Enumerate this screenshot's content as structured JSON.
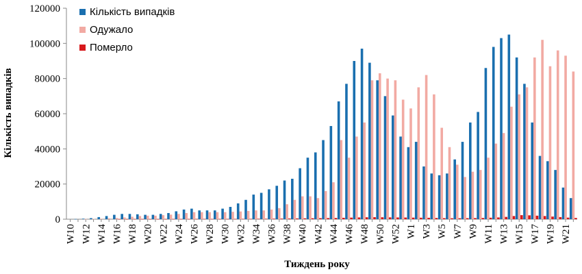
{
  "chart_data": {
    "type": "bar",
    "title": "",
    "xlabel": "Тиждень року",
    "ylabel": "Кількість випадків",
    "ylim": [
      0,
      120000
    ],
    "yticks": [
      0,
      20000,
      40000,
      60000,
      80000,
      100000,
      120000
    ],
    "grid": false,
    "legend_position": "top-left",
    "categories": [
      "W10",
      "W11",
      "W12",
      "W13",
      "W14",
      "W15",
      "W16",
      "W17",
      "W18",
      "W19",
      "W20",
      "W21",
      "W22",
      "W23",
      "W24",
      "W25",
      "W26",
      "W27",
      "W28",
      "W29",
      "W30",
      "W31",
      "W32",
      "W33",
      "W34",
      "W35",
      "W36",
      "W37",
      "W38",
      "W39",
      "W40",
      "W41",
      "W42",
      "W43",
      "W44",
      "W45",
      "W46",
      "W47",
      "W48",
      "W49",
      "W50",
      "W51",
      "W52",
      "W53",
      "W1",
      "W2",
      "W3",
      "W4",
      "W5",
      "W6",
      "W7",
      "W8",
      "W9",
      "W10",
      "W11",
      "W12",
      "W13",
      "W14",
      "W15",
      "W16",
      "W17",
      "W18",
      "W19",
      "W20",
      "W21",
      "W22"
    ],
    "tick_labels": [
      "W10",
      "W12",
      "W14",
      "W16",
      "W18",
      "W20",
      "W22",
      "W24",
      "W26",
      "W28",
      "W30",
      "W32",
      "W34",
      "W36",
      "W38",
      "W40",
      "W42",
      "W44",
      "W46",
      "W48",
      "W50",
      "W52",
      "W1",
      "W3",
      "W5",
      "W7",
      "W9",
      "W11",
      "W13",
      "W15",
      "W17",
      "W19",
      "W21"
    ],
    "series": [
      {
        "name": "Кількість випадків",
        "color": "#1a6faf",
        "values": [
          0,
          100,
          300,
          600,
          1200,
          1800,
          2500,
          3000,
          3000,
          2800,
          2500,
          2500,
          3000,
          3500,
          4500,
          5500,
          6000,
          5000,
          5000,
          5000,
          6000,
          7000,
          9000,
          11000,
          14000,
          15000,
          17000,
          19000,
          22000,
          23000,
          29000,
          35000,
          38000,
          45000,
          53000,
          67000,
          77000,
          90000,
          97000,
          89000,
          79000,
          70000,
          59000,
          47000,
          41000,
          44000,
          30000,
          26000,
          25000,
          26000,
          34000,
          44000,
          55000,
          61000,
          86000,
          98000,
          103000,
          105000,
          92000,
          77000,
          55000,
          36000,
          33000,
          28000,
          18000,
          12000
        ]
      },
      {
        "name": "Одужало",
        "color": "#f2aaa3",
        "values": [
          0,
          0,
          100,
          200,
          300,
          500,
          700,
          1000,
          1400,
          1800,
          2000,
          2000,
          2300,
          2600,
          3000,
          3500,
          4000,
          4000,
          4000,
          4000,
          4000,
          4200,
          4400,
          4700,
          5000,
          5000,
          5500,
          6300,
          8500,
          11000,
          13000,
          13000,
          12000,
          16000,
          21000,
          45000,
          35000,
          47000,
          55000,
          79000,
          83000,
          80000,
          79000,
          68000,
          63000,
          75000,
          82000,
          71000,
          52000,
          41000,
          31000,
          24000,
          27000,
          28000,
          35000,
          43000,
          49000,
          64000,
          71000,
          75000,
          92000,
          102000,
          87000,
          96000,
          93000,
          84000
        ]
      },
      {
        "name": "Померло",
        "color": "#d7191c",
        "values": [
          0,
          0,
          0,
          0,
          0,
          0,
          50,
          80,
          80,
          80,
          70,
          70,
          80,
          100,
          100,
          130,
          150,
          150,
          150,
          150,
          150,
          150,
          200,
          200,
          250,
          250,
          300,
          350,
          400,
          450,
          500,
          550,
          600,
          650,
          700,
          800,
          900,
          1000,
          1100,
          1150,
          1100,
          1050,
          1000,
          950,
          900,
          850,
          800,
          700,
          600,
          550,
          550,
          600,
          650,
          700,
          850,
          1000,
          1300,
          1800,
          2300,
          2200,
          2000,
          1800,
          1500,
          1200,
          900,
          700
        ]
      }
    ]
  }
}
